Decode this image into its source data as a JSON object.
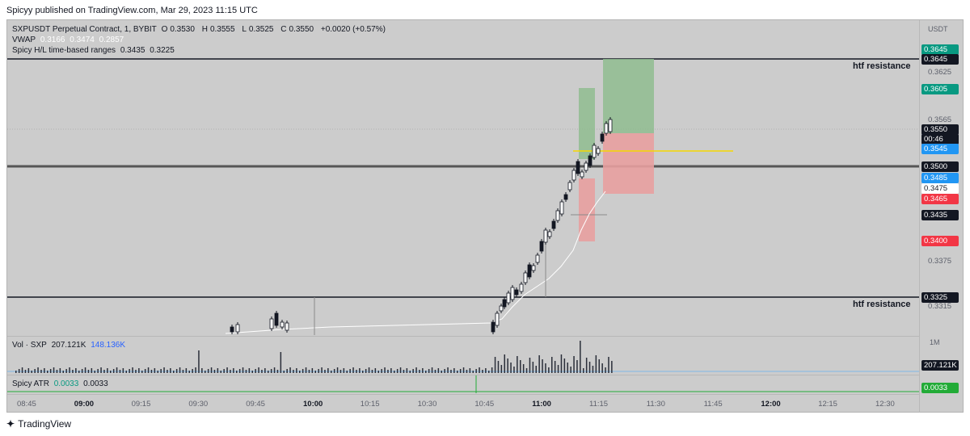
{
  "header": {
    "publish_text": "Spicyy published on TradingView.com, Mar 29, 2023 11:15 UTC"
  },
  "legend": {
    "symbol": "SXPUSDT Perpetual Contract, 1, BYBIT",
    "ohlc": {
      "o_label": "O",
      "o": "0.3530",
      "h_label": "H",
      "h": "0.3555",
      "l_label": "L",
      "l": "0.3525",
      "c_label": "C",
      "c": "0.3550",
      "change": "+0.0020 (+0.57%)"
    },
    "vwap": {
      "label": "VWAP",
      "v1": "0.3166",
      "v2": "0.3474",
      "v3": "0.2857"
    },
    "hl": {
      "label": "Spicy H/L time-based ranges",
      "v1": "0.3435",
      "v2": "0.3225"
    }
  },
  "price_axis": {
    "unit": "USDT",
    "ticks": [
      "0.3625",
      "0.3565",
      "0.3375",
      "0.3315"
    ],
    "labels": [
      {
        "text": "0.3645",
        "style": "green"
      },
      {
        "text": "0.3645",
        "style": "black"
      },
      {
        "text": "0.3605",
        "style": "green"
      },
      {
        "text": "0.3550",
        "style": "black"
      },
      {
        "text": "00:46",
        "style": "black"
      },
      {
        "text": "0.3545",
        "style": "blue"
      },
      {
        "text": "0.3500",
        "style": "black"
      },
      {
        "text": "0.3485",
        "style": "blue"
      },
      {
        "text": "0.3475",
        "style": "white"
      },
      {
        "text": "0.3465",
        "style": "red"
      },
      {
        "text": "0.3435",
        "style": "black"
      },
      {
        "text": "0.3400",
        "style": "red"
      },
      {
        "text": "0.3325",
        "style": "black"
      }
    ],
    "volume_unit": "1M",
    "volume_label": "207.121K",
    "atr_label": "0.0033"
  },
  "annotations": {
    "upper": "htf resistance",
    "lower": "htf resistance"
  },
  "volume": {
    "label": "Vol · SXP",
    "v1": "207.121K",
    "v2": "148.136K"
  },
  "atr": {
    "label": "Spicy ATR",
    "v1": "0.0033",
    "v2": "0.0033"
  },
  "time_axis": {
    "ticks": [
      "08:45",
      "09:00",
      "09:15",
      "09:30",
      "09:45",
      "10:00",
      "10:15",
      "10:30",
      "10:45",
      "11:00",
      "11:15",
      "11:30",
      "11:45",
      "12:00",
      "12:15",
      "12:30"
    ],
    "bold": [
      "09:00",
      "10:00",
      "11:00",
      "12:00"
    ]
  },
  "footer": {
    "brand": "TradingView"
  },
  "colors": {
    "bg": "#cccccc",
    "long_zone": "#8fbc8f",
    "short_zone": "#e8a0a0",
    "vwap_line": "#ffffff",
    "hl_line": "#f5d800"
  }
}
